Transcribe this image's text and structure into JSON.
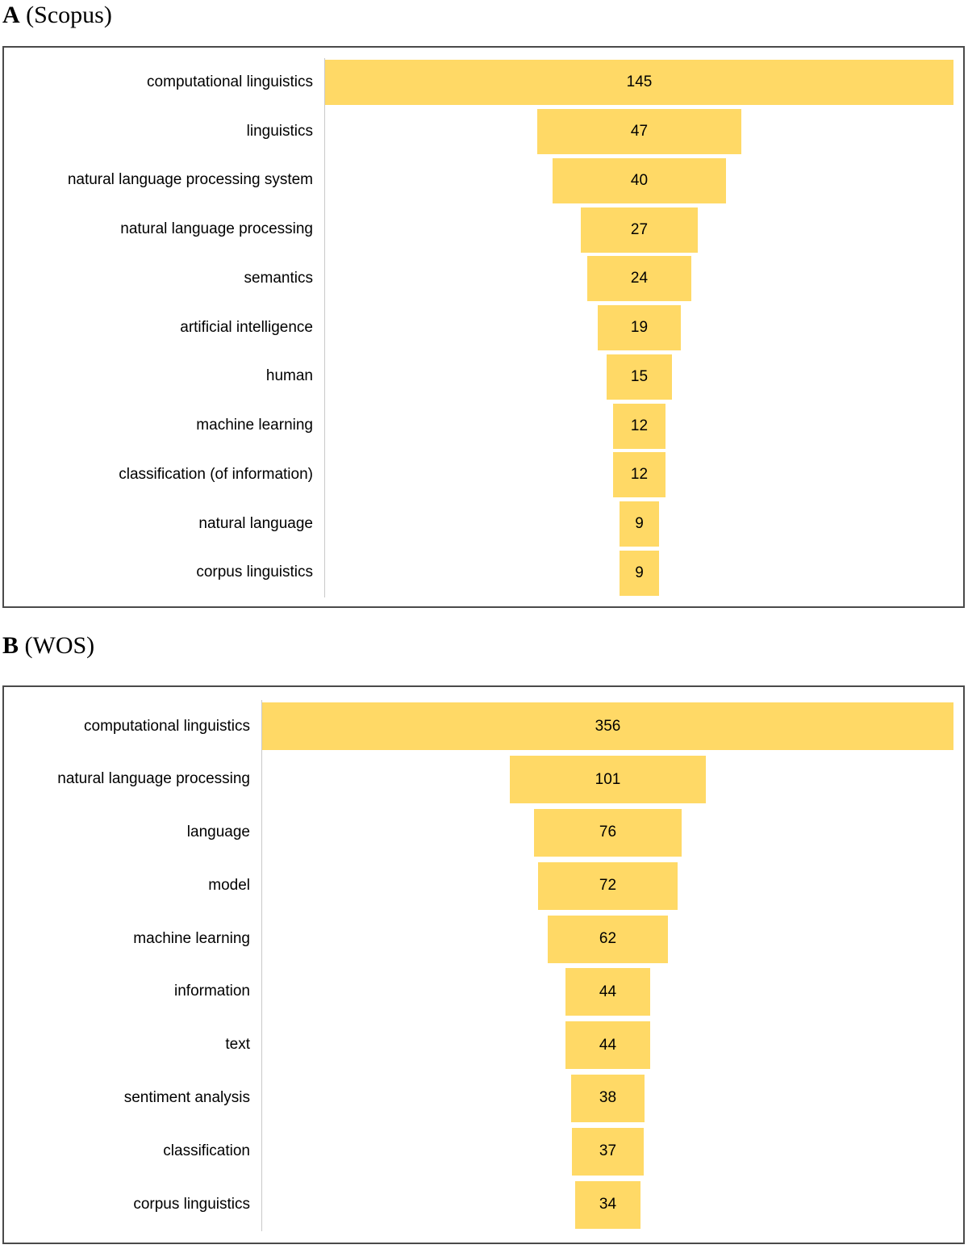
{
  "page": {
    "background": "#ffffff",
    "text_color": "#000000",
    "frame_color": "#4a4a4a",
    "axis_line_color": "#c9c9c9"
  },
  "chart_data": [
    {
      "type": "bar",
      "subtype": "horizontal-centered-funnel",
      "panel_letter": "A",
      "panel_suffix": " (Scopus)",
      "categories": [
        "computational linguistics",
        "linguistics",
        "natural language processing system",
        "natural language processing",
        "semantics",
        "artificial intelligence",
        "human",
        "machine learning",
        "classification (of information)",
        "natural language",
        "corpus linguistics"
      ],
      "values": [
        145,
        47,
        40,
        27,
        24,
        19,
        15,
        12,
        12,
        9,
        9
      ],
      "xlim": [
        0,
        145
      ],
      "bar_color": "#FFD966",
      "value_label_position": "inside-center",
      "legend": "none",
      "grid": "off"
    },
    {
      "type": "bar",
      "subtype": "horizontal-centered-funnel",
      "panel_letter": "B",
      "panel_suffix": " (WOS)",
      "categories": [
        "computational linguistics",
        "natural language processing",
        "language",
        "model",
        "machine learning",
        "information",
        "text",
        "sentiment analysis",
        "classification",
        "corpus linguistics"
      ],
      "values": [
        356,
        101,
        76,
        72,
        62,
        44,
        44,
        38,
        37,
        34
      ],
      "xlim": [
        0,
        356
      ],
      "bar_color": "#FFD966",
      "value_label_position": "inside-center",
      "legend": "none",
      "grid": "off"
    }
  ]
}
